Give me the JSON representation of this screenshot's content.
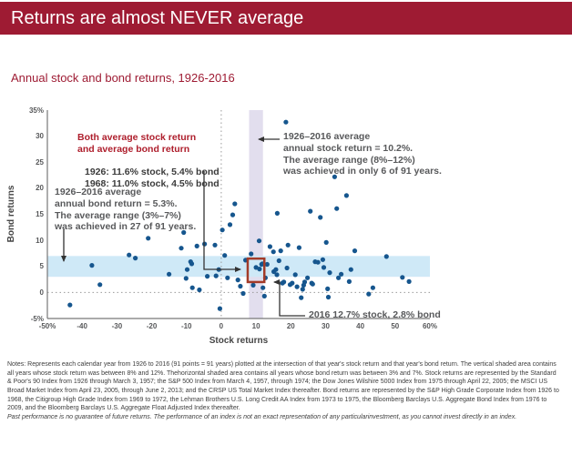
{
  "header": {
    "title": "Returns are almost NEVER average"
  },
  "subtitle": "Annual stock and bond returns, 1926-2016",
  "colors": {
    "banner_bg": "#9e1b33",
    "accent_red": "#ae1e2c",
    "dot": "#16568e",
    "blue_band": "#cfe9f7",
    "purple_band": "#e2deee",
    "box_stroke": "#a33b28",
    "gray_text": "#58595b"
  },
  "chart_data": {
    "type": "scatter",
    "title": "Annual stock and bond returns, 1926-2016",
    "xlabel": "Stock returns",
    "ylabel": "Bond returns",
    "xlim": [
      -50,
      60
    ],
    "ylim": [
      -5,
      35
    ],
    "grid": false,
    "x_ticks": [
      {
        "v": -50,
        "label": "-50%"
      },
      {
        "v": -40,
        "label": "-40"
      },
      {
        "v": -30,
        "label": "-30"
      },
      {
        "v": -20,
        "label": "-20"
      },
      {
        "v": -10,
        "label": "-10"
      },
      {
        "v": 0,
        "label": "0"
      },
      {
        "v": 10,
        "label": "10"
      },
      {
        "v": 20,
        "label": "20"
      },
      {
        "v": 30,
        "label": "30"
      },
      {
        "v": 40,
        "label": "40"
      },
      {
        "v": 50,
        "label": "50"
      },
      {
        "v": 60,
        "label": "60%"
      }
    ],
    "y_ticks": [
      {
        "v": 35,
        "label": "35%"
      },
      {
        "v": 30,
        "label": "30"
      },
      {
        "v": 25,
        "label": "25"
      },
      {
        "v": 20,
        "label": "20"
      },
      {
        "v": 15,
        "label": "15"
      },
      {
        "v": 10,
        "label": "10"
      },
      {
        "v": 5,
        "label": "5"
      },
      {
        "v": 0,
        "label": "0"
      },
      {
        "v": -5,
        "label": "-5%"
      }
    ],
    "vertical_band_stock_pct": [
      8,
      12
    ],
    "horizontal_band_bond_pct": [
      3,
      7
    ],
    "highlight_box": {
      "stock": [
        8,
        12
      ],
      "bond": [
        2,
        6.5
      ]
    },
    "zero_lines": {
      "vertical_at_stock": 0,
      "horizontal_at_bond": 0
    },
    "points": [
      [
        -43.5,
        -2.4
      ],
      [
        -37.2,
        5.2
      ],
      [
        -34.9,
        1.5
      ],
      [
        -26.5,
        7.2
      ],
      [
        -24.7,
        6.6
      ],
      [
        -21.0,
        10.4
      ],
      [
        -15.0,
        3.5
      ],
      [
        -11.5,
        8.5
      ],
      [
        -10.8,
        11.5
      ],
      [
        -10.1,
        2.7
      ],
      [
        -9.8,
        4.4
      ],
      [
        -8.8,
        5.9
      ],
      [
        -8.5,
        5.5
      ],
      [
        -8.3,
        0.9
      ],
      [
        -7.0,
        8.9
      ],
      [
        -6.3,
        0.5
      ],
      [
        -4.8,
        9.3
      ],
      [
        -4.0,
        3.1
      ],
      [
        -1.8,
        9.1
      ],
      [
        -1.5,
        3.2
      ],
      [
        -0.7,
        4.4
      ],
      [
        -0.4,
        -3.1
      ],
      [
        0.3,
        12.0
      ],
      [
        1.0,
        7.1
      ],
      [
        1.8,
        2.8
      ],
      [
        2.5,
        13.0
      ],
      [
        3.3,
        14.9
      ],
      [
        3.9,
        17.0
      ],
      [
        4.8,
        2.4
      ],
      [
        5.5,
        1.2
      ],
      [
        6.3,
        -0.2
      ],
      [
        7.0,
        6.2
      ],
      [
        8.6,
        7.4
      ],
      [
        9.2,
        1.4
      ],
      [
        10.0,
        4.8
      ],
      [
        10.9,
        9.9
      ],
      [
        11.0,
        4.5
      ],
      [
        11.6,
        5.4
      ],
      [
        11.8,
        5.5
      ],
      [
        12.0,
        0.9
      ],
      [
        12.4,
        -0.7
      ],
      [
        12.7,
        2.8
      ],
      [
        13.2,
        5.4
      ],
      [
        14.0,
        8.8
      ],
      [
        15.0,
        7.8
      ],
      [
        15.1,
        4.0
      ],
      [
        15.7,
        4.4
      ],
      [
        16.0,
        3.4
      ],
      [
        16.1,
        15.2
      ],
      [
        16.6,
        6.1
      ],
      [
        17.1,
        8.0
      ],
      [
        17.6,
        1.8
      ],
      [
        18.0,
        2.0
      ],
      [
        18.6,
        32.7
      ],
      [
        18.9,
        4.7
      ],
      [
        19.2,
        9.1
      ],
      [
        19.8,
        1.5
      ],
      [
        20.4,
        1.8
      ],
      [
        21.3,
        3.4
      ],
      [
        21.8,
        1.1
      ],
      [
        22.4,
        8.6
      ],
      [
        23.0,
        -1.0
      ],
      [
        23.4,
        0.6
      ],
      [
        23.7,
        1.4
      ],
      [
        24.0,
        2.0
      ],
      [
        24.8,
        2.8
      ],
      [
        25.6,
        15.6
      ],
      [
        26.0,
        1.8
      ],
      [
        26.3,
        1.6
      ],
      [
        27.0,
        5.9
      ],
      [
        27.8,
        5.8
      ],
      [
        28.5,
        14.4
      ],
      [
        29.2,
        6.3
      ],
      [
        29.5,
        4.8
      ],
      [
        30.2,
        9.6
      ],
      [
        30.6,
        0.7
      ],
      [
        30.8,
        -0.9
      ],
      [
        31.2,
        3.8
      ],
      [
        32.6,
        22.2
      ],
      [
        33.2,
        16.1
      ],
      [
        33.7,
        2.8
      ],
      [
        34.5,
        3.5
      ],
      [
        36.0,
        18.6
      ],
      [
        36.8,
        2.1
      ],
      [
        37.3,
        4.4
      ],
      [
        38.4,
        8.0
      ],
      [
        42.4,
        -0.3
      ],
      [
        43.6,
        0.9
      ],
      [
        47.5,
        6.9
      ],
      [
        52.1,
        2.9
      ],
      [
        54.0,
        2.1
      ]
    ],
    "annotations": {
      "both_avg": {
        "title": "Both average stock return\nand average bond return",
        "values": "1926: 11.6% stock, 5.4% bond\n1968: 11.0% stock, 4.5% bond"
      },
      "bond_avg": "1926–2016 average\nannual bond return = 5.3%.\nThe average range (3%–7%)\nwas achieved in 27 of 91 years.",
      "stock_avg": "1926–2016 average\nannual stock return = 10.2%.\nThe average range (8%–12%)\nwas achieved in only 6 of 91 years.",
      "point_2016": "2016 12.7% stock, 2.8% bond"
    }
  },
  "notes": {
    "body": "Notes: Represents each calendar year from 1926 to 2016 (91 points = 91 years) plotted at the intersection of that year's stock return and that year's bond return. The vertical shaded area contains all years whose stock return was between 8% and 12%. Thehorizontal shaded area contains all years whose bond return was between 3% and 7%. Stock returns are represented by the Standard & Poor's 90 Index from 1926 through March 3, 1957; the S&P 500 Index from March 4, 1957, through 1974; the Dow Jones Wilshire 5000 Index from 1975 through April 22, 2005; the MSCI US Broad Market Index from April 23, 2005, through June 2, 2013; and the CRSP US Total Market Index thereafter. Bond returns are represented by the S&P High Grade Corporate Index from 1926 to 1968, the Citigroup High Grade Index from 1969 to 1972, the Lehman Brothers U.S. Long Credit AA Index from 1973 to 1975, the Bloomberg Barclays U.S. Aggregate Bond Index from 1976 to 2009, and the Bloomberg Barclays U.S. Aggregate Float Adjusted Index thereafter.",
    "disclaimer": "Past performance is no guarantee of future returns. The performance of an index is not an exact representation of any particularinvestment, as you cannot invest directly in an index."
  }
}
